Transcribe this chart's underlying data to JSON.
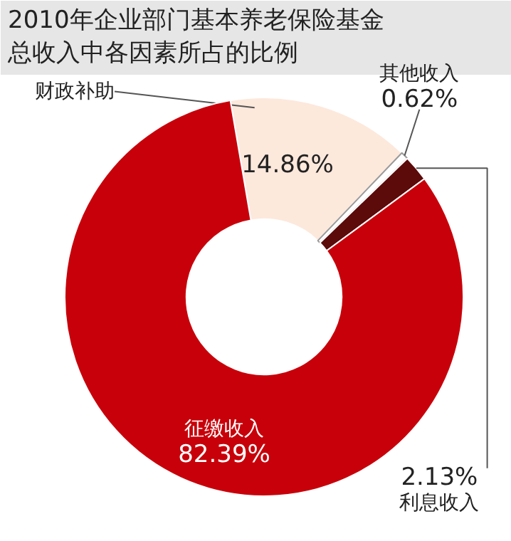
{
  "chart_data": {
    "type": "donut",
    "title": "2010年企业部门基本养老保险基金总收入中各因素所占的比例",
    "categories": [
      "财政补助",
      "其他收入",
      "利息收入",
      "征缴收入"
    ],
    "values": [
      14.86,
      0.62,
      2.13,
      82.39
    ],
    "colors": [
      "#fde8dc",
      "#ffffff",
      "#5c0a0a",
      "#c8000a"
    ],
    "value_labels": [
      "14.86%",
      "0.62%",
      "2.13%",
      "82.39%"
    ]
  }
}
